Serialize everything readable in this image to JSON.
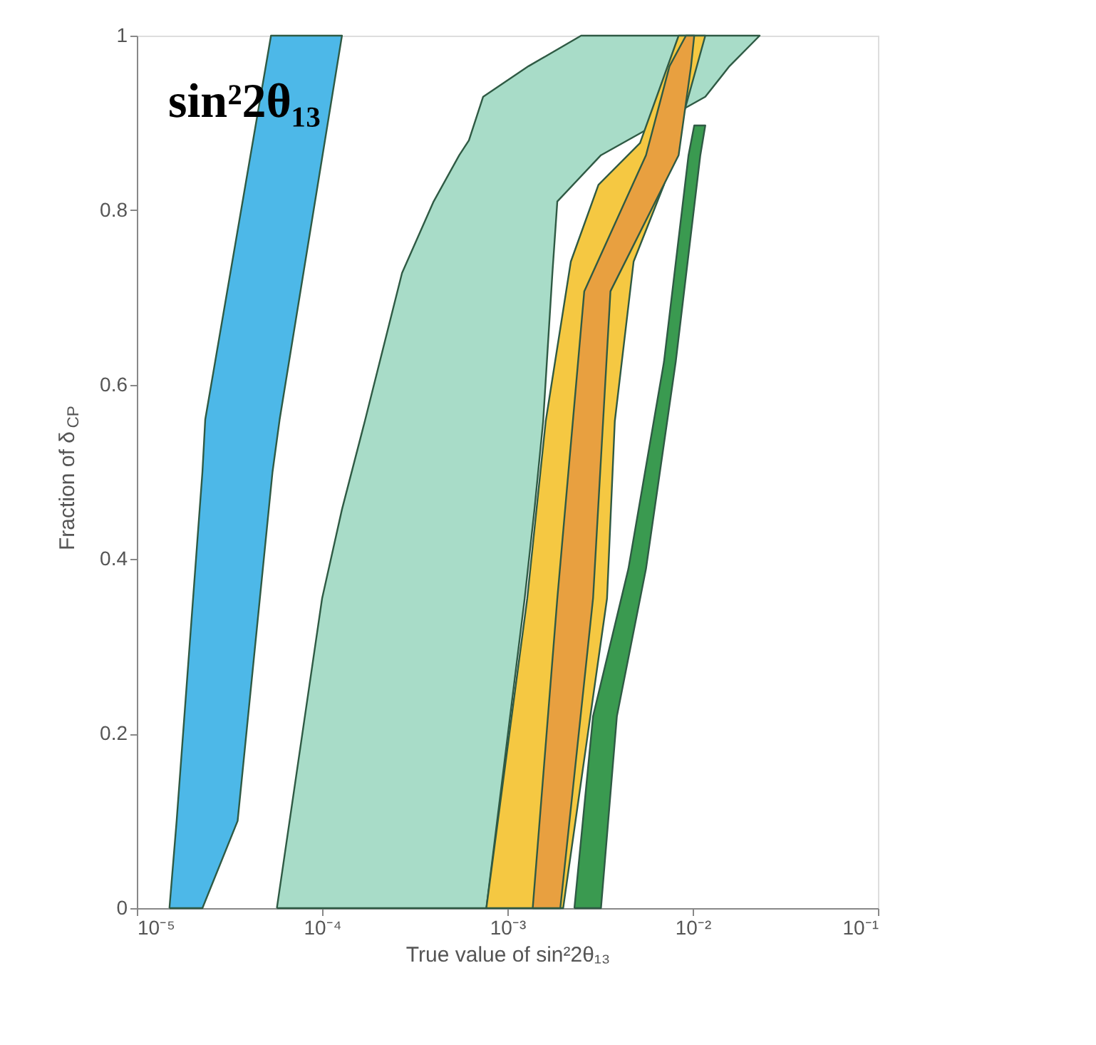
{
  "chart_data": {
    "type": "area",
    "xlabel": "True value of sin²2θ₁₃",
    "ylabel": "Fraction of δ$_{CP}$",
    "annotations": [
      "sin²2θ₁₃"
    ],
    "log": "x",
    "grid": false,
    "xlim": [
      1e-05,
      0.1
    ],
    "xticks": [
      {
        "value": 1e-05,
        "label": "10⁻⁵"
      },
      {
        "value": 0.0001,
        "label": "10⁻⁴"
      },
      {
        "value": 0.001,
        "label": "10⁻³"
      },
      {
        "value": 0.01,
        "label": "10⁻²"
      },
      {
        "value": 0.1,
        "label": "10⁻¹"
      }
    ],
    "ylim": [
      0,
      1
    ],
    "yticks": [
      0,
      0.2,
      0.4,
      0.6,
      0.8,
      1
    ],
    "series": [
      {
        "color": "#a8dcc8",
        "x": [
          5.7e-05,
          0.0001,
          0.000128,
          0.00017,
          0.00027,
          0.0004,
          0.00055,
          0.00062,
          0.00074,
          0.0013,
          0.0025,
          0.023,
          0.0158,
          0.0117,
          0.0032,
          0.00186,
          0.00175,
          0.00156,
          0.0014,
          0.00124,
          0.00077
        ],
        "values": [
          0,
          0.355,
          0.457,
          0.558,
          0.728,
          0.81,
          0.863,
          0.88,
          0.93,
          0.965,
          1,
          1,
          0.965,
          0.93,
          0.863,
          0.81,
          0.728,
          0.558,
          0.457,
          0.355,
          0
        ]
      },
      {
        "color": "#4db8e8",
        "x": [
          1.5e-05,
          1.64e-05,
          2.26e-05,
          2.34e-05,
          5.3e-05,
          0.000128,
          5.9e-05,
          5.4e-05,
          3.5e-05,
          2.26e-05
        ],
        "values": [
          0,
          0.1,
          0.5,
          0.56,
          1,
          1,
          0.56,
          0.5,
          0.1,
          0
        ]
      },
      {
        "color": "#f5c842",
        "x": [
          0.00077,
          0.00128,
          0.00161,
          0.0022,
          0.0031,
          0.0052,
          0.0084,
          0.0117,
          0.007,
          0.0048,
          0.0038,
          0.00345,
          0.002
        ],
        "values": [
          0,
          0.355,
          0.558,
          0.741,
          0.829,
          0.877,
          1,
          1,
          0.829,
          0.741,
          0.558,
          0.355,
          0
        ]
      },
      {
        "color": "#e8a040",
        "x": [
          0.00137,
          0.00186,
          0.0026,
          0.0056,
          0.0075,
          0.0092,
          0.0102,
          0.0098,
          0.0084,
          0.0036,
          0.0029,
          0.00193
        ],
        "values": [
          0,
          0.355,
          0.707,
          0.863,
          0.965,
          1,
          1,
          0.965,
          0.863,
          0.707,
          0.355,
          0
        ]
      },
      {
        "color": "#3a9a50",
        "x": [
          0.0023,
          0.0029,
          0.0045,
          0.007,
          0.0095,
          0.0102,
          0.0117,
          0.011,
          0.0081,
          0.0056,
          0.0039,
          0.0032
        ],
        "values": [
          0,
          0.22,
          0.389,
          0.626,
          0.863,
          0.897,
          0.897,
          0.863,
          0.626,
          0.389,
          0.22,
          0
        ]
      }
    ]
  }
}
